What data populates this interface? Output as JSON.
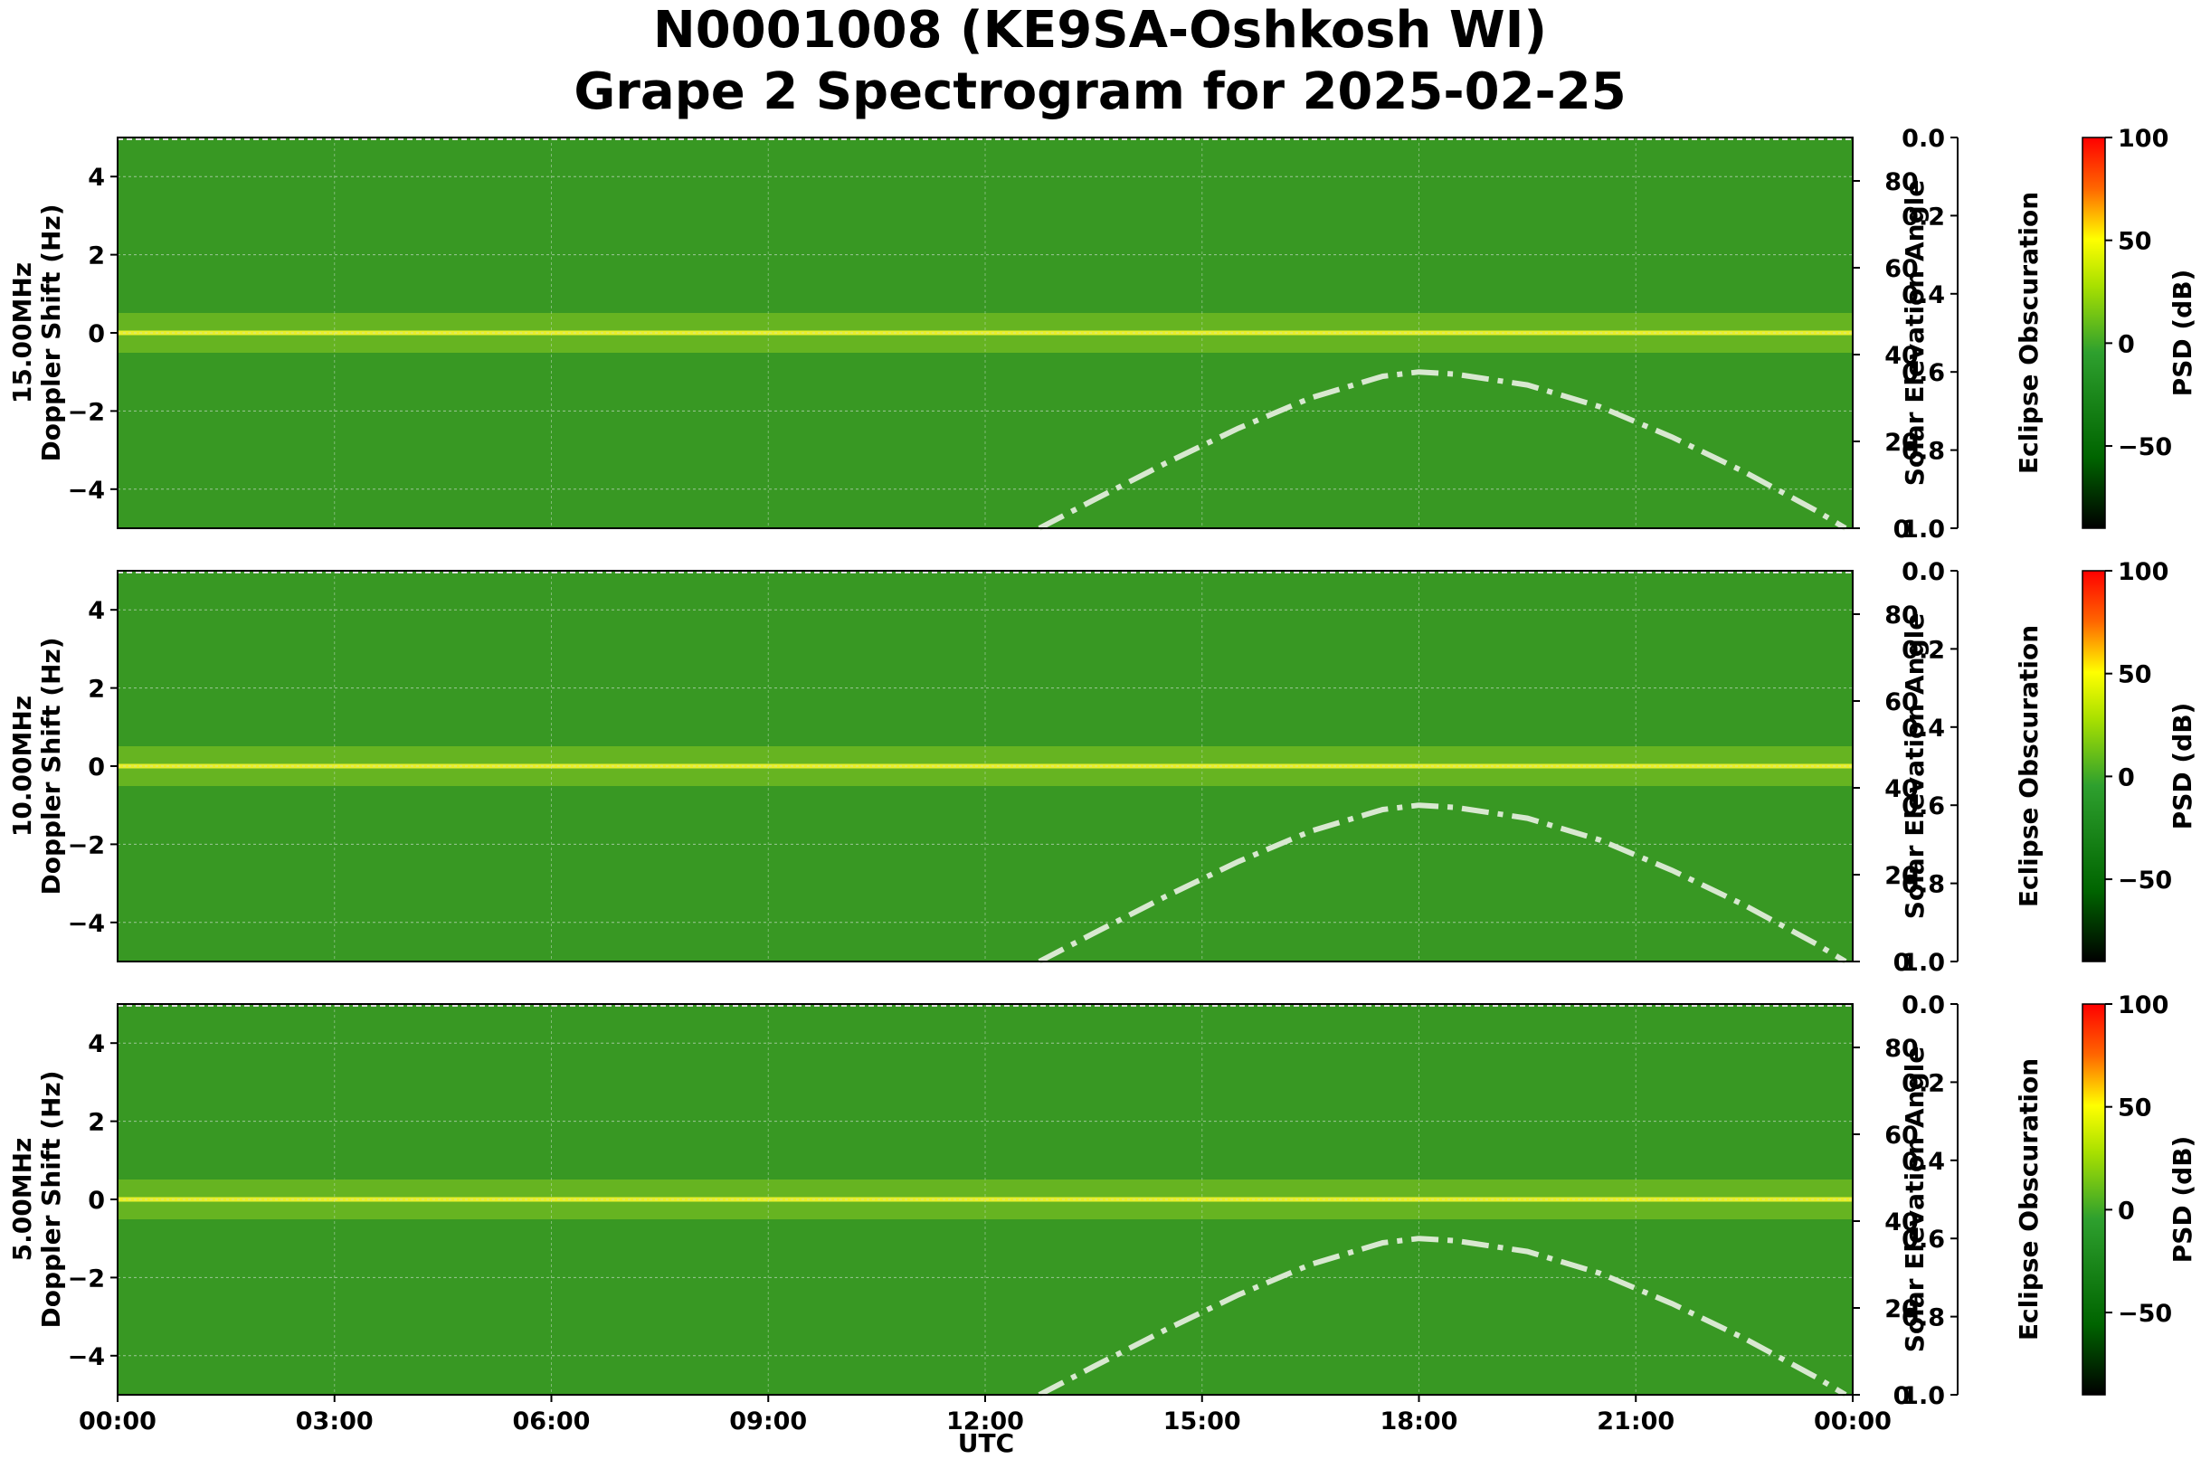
{
  "title_line1": "N0001008 (KE9SA-Oshkosh WI)",
  "title_line2": "Grape 2 Spectrogram for 2025-02-25",
  "chart_data": {
    "type": "heatmap",
    "x_label": "UTC",
    "x_ticks": [
      "00:00",
      "03:00",
      "06:00",
      "09:00",
      "12:00",
      "15:00",
      "18:00",
      "21:00",
      "00:00"
    ],
    "y_label": "Doppler Shift (Hz)",
    "ylim": [
      -5,
      5
    ],
    "y_ticks": [
      4,
      2,
      0,
      -2,
      -4
    ],
    "right_axis_label": "Solar Elevation Angle",
    "right_axis_range": [
      0,
      90
    ],
    "right_axis_ticks": [
      80,
      60,
      40,
      20,
      0
    ],
    "eclipse_axis_label": "Eclipse Obscuration",
    "eclipse_axis_ticks": [
      "0.0",
      "0.2",
      "0.4",
      "0.6",
      "0.8",
      "1.0"
    ],
    "colorbar_label": "PSD (dB)",
    "colorbar_ticks": [
      100,
      50,
      0,
      -50
    ],
    "colorbar_range": [
      -90,
      100
    ],
    "colorbar_colors": [
      "#000000",
      "#006400",
      "#2ea02e",
      "#a8e000",
      "#ffff00",
      "#ff6600",
      "#ff0000"
    ],
    "panels": [
      {
        "name": "15.00MHz",
        "solar_elevation": {
          "x_hours": [
            12.75,
            13.5,
            14.5,
            15.5,
            16.5,
            17.5,
            18.0,
            18.5,
            19.5,
            20.5,
            21.5,
            22.5,
            23.5,
            23.9
          ],
          "values": [
            0,
            6.5,
            15,
            23,
            30,
            35,
            36,
            35.5,
            33,
            28,
            21,
            13,
            4,
            0
          ]
        }
      },
      {
        "name": "10.00MHz",
        "solar_elevation": {
          "x_hours": [
            12.75,
            13.5,
            14.5,
            15.5,
            16.5,
            17.5,
            18.0,
            18.5,
            19.5,
            20.5,
            21.5,
            22.5,
            23.5,
            23.9
          ],
          "values": [
            0,
            6.5,
            15,
            23,
            30,
            35,
            36,
            35.5,
            33,
            28,
            21,
            13,
            4,
            0
          ]
        }
      },
      {
        "name": "5.00MHz",
        "solar_elevation": {
          "x_hours": [
            12.75,
            13.5,
            14.5,
            15.5,
            16.5,
            17.5,
            18.0,
            18.5,
            19.5,
            20.5,
            21.5,
            22.5,
            23.5,
            23.9
          ],
          "values": [
            0,
            6.5,
            15,
            23,
            30,
            35,
            36,
            35.5,
            33,
            28,
            21,
            13,
            4,
            0
          ]
        }
      }
    ]
  }
}
